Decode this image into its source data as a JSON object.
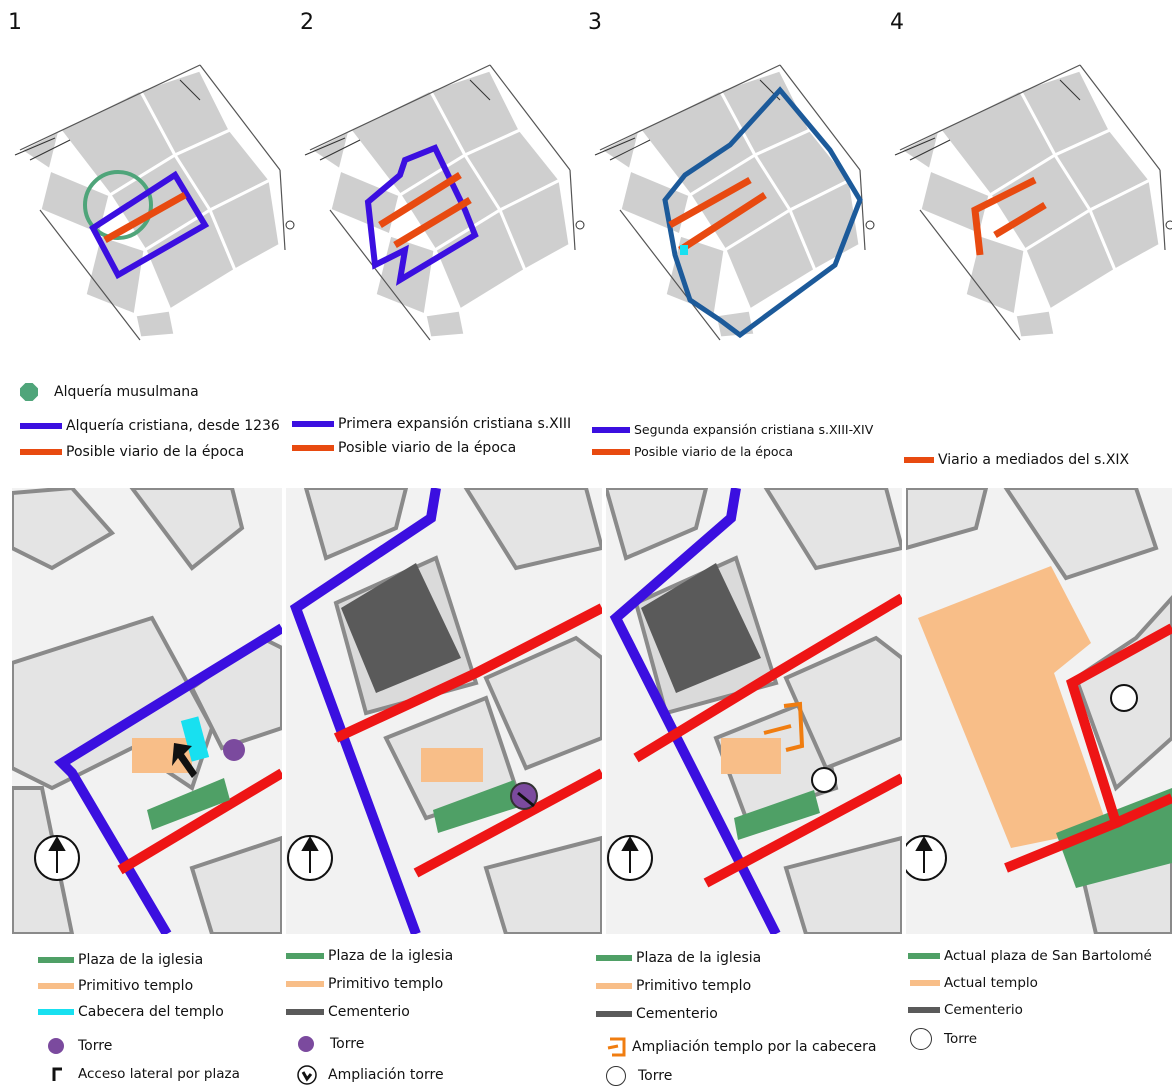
{
  "panels": [
    {
      "number": "1",
      "legend_top": [
        "Alquería musulmana",
        "Alquería cristiana, desde 1236",
        "Posible viario de la época"
      ],
      "legend_bottom": [
        "Plaza de la iglesia",
        "Primitivo templo",
        "Cabecera del templo",
        "Torre",
        "Acceso lateral por plaza"
      ]
    },
    {
      "number": "2",
      "legend_top": [
        "Primera expansión cristiana s.XIII",
        "Posible viario de la época"
      ],
      "legend_bottom": [
        "Plaza de la iglesia",
        "Primitivo templo",
        "Cementerio",
        "Torre",
        "Ampliación torre"
      ]
    },
    {
      "number": "3",
      "legend_top": [
        "Segunda expansión cristiana s.XIII-XIV",
        "Posible viario de la época"
      ],
      "legend_bottom": [
        "Plaza de la iglesia",
        "Primitivo templo",
        "Cementerio",
        "Ampliación templo por la cabecera",
        "Torre"
      ]
    },
    {
      "number": "4",
      "legend_top": [
        "Viario a mediados del s.XIX"
      ],
      "legend_bottom": [
        "Actual plaza de San Bartolomé",
        "Actual templo",
        "Cementerio",
        "Torre"
      ]
    }
  ],
  "colors": {
    "alqueria_musulmana": "#4fa57a",
    "alqueria_cristiana": "#3b0fe0",
    "expansion_2": "#1c5a9a",
    "viario": "#e84a10",
    "red_street": "#ee1515",
    "plaza": "#4fa066",
    "templo": "#f8be88",
    "cabecera": "#18e0f0",
    "cementerio": "#5a5a5a",
    "torre": "#7b4a9e",
    "ampliacion_cabecera": "#f07d10",
    "block": "#cfcfcf"
  }
}
